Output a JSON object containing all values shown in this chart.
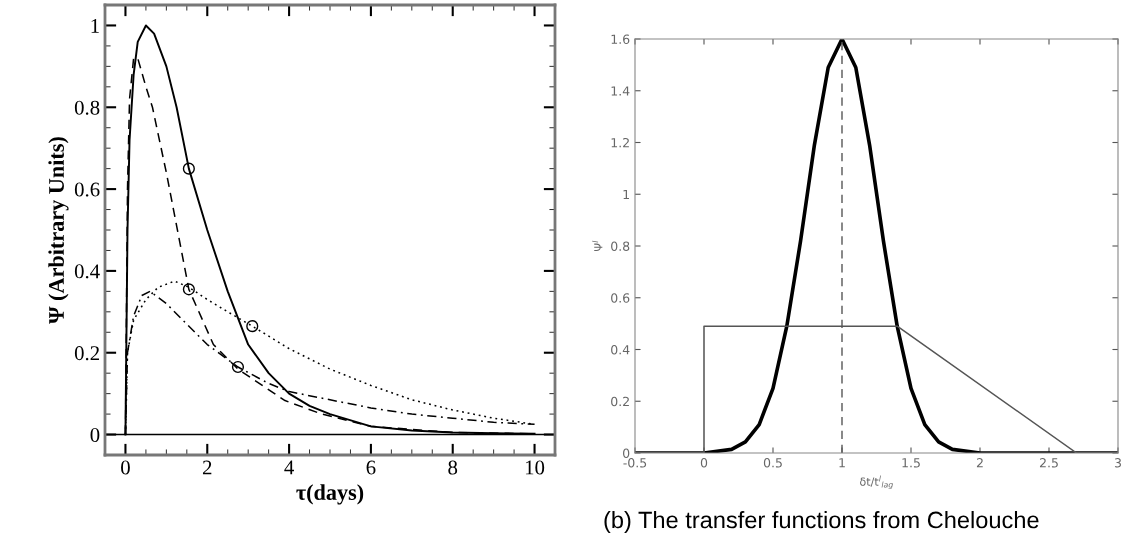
{
  "chart_data": [
    {
      "type": "line",
      "xlabel": "τ(days)",
      "ylabel": "Ψ (Arbitrary Units)",
      "xlim": [
        -0.5,
        10.5
      ],
      "ylim": [
        -0.05,
        1.05
      ],
      "xticks": [
        0,
        2,
        4,
        6,
        8,
        10
      ],
      "yticks": [
        0,
        0.2,
        0.4,
        0.6,
        0.8,
        1
      ],
      "grid": false,
      "legend": false,
      "ref_lines": [
        {
          "axis": "y",
          "value": 0,
          "color": "#000000",
          "line_style": "solid"
        }
      ],
      "series": [
        {
          "color": "#000000",
          "line_style": "solid",
          "x": [
            0,
            0.05,
            0.1,
            0.2,
            0.3,
            0.5,
            0.7,
            1.0,
            1.25,
            1.55,
            2.0,
            2.5,
            3.0,
            3.5,
            4.0,
            4.5,
            5,
            6,
            7,
            8,
            9,
            10
          ],
          "values": [
            0,
            0.5,
            0.72,
            0.88,
            0.96,
            1.0,
            0.98,
            0.9,
            0.8,
            0.65,
            0.5,
            0.35,
            0.22,
            0.15,
            0.1,
            0.07,
            0.05,
            0.02,
            0.01,
            0.005,
            0.003,
            0.002
          ]
        },
        {
          "color": "#000000",
          "line_style": "dashed",
          "x": [
            0,
            0.05,
            0.1,
            0.2,
            0.3,
            0.5,
            0.66,
            1.0,
            1.55,
            2.15,
            2.75,
            3.9,
            4.8,
            6,
            8,
            10
          ],
          "values": [
            0,
            0.6,
            0.82,
            0.92,
            0.92,
            0.85,
            0.8,
            0.64,
            0.355,
            0.22,
            0.16,
            0.083,
            0.05,
            0.02,
            0.005,
            0.002
          ]
        },
        {
          "color": "#000000",
          "line_style": "dotted",
          "x": [
            0,
            0.05,
            0.2,
            0.5,
            0.8,
            1.2,
            1.55,
            2.0,
            2.5,
            3.1,
            4,
            5,
            6,
            7,
            8,
            9,
            10
          ],
          "values": [
            0,
            0.2,
            0.28,
            0.33,
            0.36,
            0.375,
            0.36,
            0.33,
            0.3,
            0.265,
            0.21,
            0.16,
            0.12,
            0.085,
            0.06,
            0.04,
            0.025
          ]
        },
        {
          "color": "#000000",
          "line_style": "dashdot",
          "x": [
            0,
            0.05,
            0.2,
            0.4,
            0.6,
            1.0,
            1.5,
            2.0,
            2.75,
            3.5,
            4,
            5,
            6,
            7,
            8,
            9,
            10
          ],
          "values": [
            0,
            0.2,
            0.29,
            0.34,
            0.35,
            0.32,
            0.27,
            0.22,
            0.165,
            0.125,
            0.105,
            0.085,
            0.065,
            0.05,
            0.04,
            0.03,
            0.025
          ]
        },
        {
          "type": "scatter",
          "marker": "circle",
          "color": "#000000",
          "x": [
            1.55,
            1.55,
            3.1,
            2.75
          ],
          "values": [
            0.65,
            0.355,
            0.265,
            0.165
          ]
        }
      ]
    },
    {
      "type": "line",
      "xlabel": "δt/t$^{l}$$_{lag}$",
      "ylabel": "Ψ$^{l}$",
      "xlim": [
        -0.5,
        3
      ],
      "ylim": [
        0,
        1.6
      ],
      "xticks": [
        -0.5,
        0,
        0.5,
        1,
        1.5,
        2,
        2.5,
        3
      ],
      "yticks": [
        0,
        0.2,
        0.4,
        0.6,
        0.8,
        1,
        1.2,
        1.4,
        1.6
      ],
      "grid": false,
      "legend": false,
      "ref_lines": [
        {
          "axis": "x",
          "value": 1,
          "color": "#555555",
          "line_style": "dashed"
        }
      ],
      "annotations": [
        "(b) The transfer functions from Chelouche"
      ],
      "series": [
        {
          "color": "#000000",
          "line_style": "solid",
          "x": [
            -0.5,
            0,
            0.2,
            0.3,
            0.4,
            0.5,
            0.6,
            0.7,
            0.8,
            0.9,
            1.0,
            1.1,
            1.2,
            1.3,
            1.4,
            1.5,
            1.6,
            1.7,
            1.8,
            2,
            3
          ],
          "values": [
            0,
            0,
            0.014,
            0.043,
            0.11,
            0.25,
            0.49,
            0.82,
            1.19,
            1.49,
            1.6,
            1.49,
            1.19,
            0.82,
            0.49,
            0.25,
            0.11,
            0.043,
            0.014,
            0,
            0
          ]
        },
        {
          "color": "#555555",
          "line_style": "solid",
          "x": [
            -0.5,
            0,
            0,
            1.4,
            2.7,
            3
          ],
          "values": [
            0,
            0,
            0.49,
            0.49,
            0,
            0
          ]
        }
      ]
    }
  ]
}
